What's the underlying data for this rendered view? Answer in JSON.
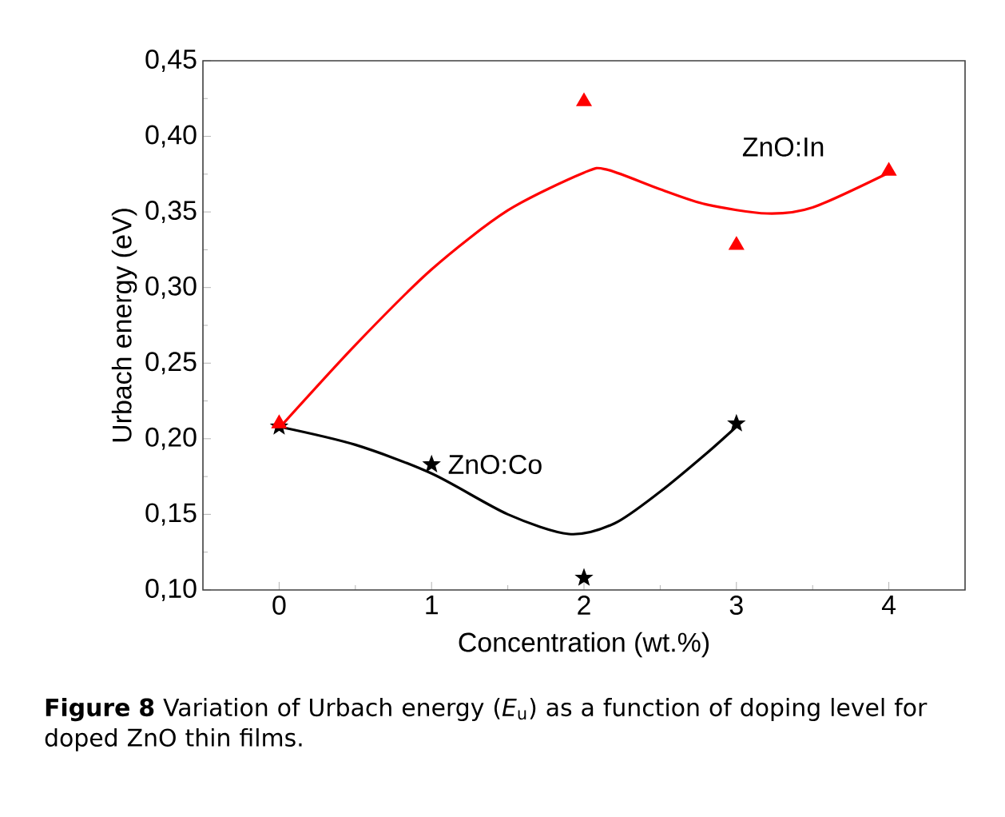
{
  "chart_data": {
    "type": "scatter",
    "xlabel": "Concentration (wt.%)",
    "ylabel": "Urbach energy (eV)",
    "xlim": [
      -0.5,
      4.5
    ],
    "xticks": [
      0,
      1,
      2,
      3,
      4
    ],
    "ylim": [
      0.1,
      0.45
    ],
    "yticks": [
      {
        "value": 0.1,
        "label": "0,10"
      },
      {
        "value": 0.15,
        "label": "0,15"
      },
      {
        "value": 0.2,
        "label": "0,20"
      },
      {
        "value": 0.25,
        "label": "0,25"
      },
      {
        "value": 0.3,
        "label": "0,30"
      },
      {
        "value": 0.35,
        "label": "0,35"
      },
      {
        "value": 0.4,
        "label": "0,40"
      },
      {
        "value": 0.45,
        "label": "0,45"
      }
    ],
    "series": [
      {
        "type": "line",
        "color": "#ff0000",
        "marker": "none",
        "x": [
          0,
          0.5,
          1,
          1.5,
          2,
          2.15,
          2.5,
          2.8,
          3.2,
          3.5,
          4
        ],
        "values": [
          0.207,
          0.262,
          0.312,
          0.351,
          0.376,
          0.378,
          0.365,
          0.355,
          0.349,
          0.353,
          0.376
        ]
      },
      {
        "type": "line",
        "color": "#000000",
        "marker": "none",
        "x": [
          0,
          0.5,
          1,
          1.5,
          1.9,
          2.2,
          2.5,
          2.8,
          3
        ],
        "values": [
          0.208,
          0.196,
          0.177,
          0.15,
          0.137,
          0.144,
          0.165,
          0.19,
          0.208
        ]
      },
      {
        "name": "ZnO:Co",
        "color": "#000000",
        "marker": "star",
        "x": [
          0,
          1,
          2,
          3
        ],
        "values": [
          0.208,
          0.183,
          0.108,
          0.21
        ]
      },
      {
        "name": "ZnO:In",
        "color": "#ff0000",
        "marker": "triangle",
        "x": [
          0,
          2,
          3,
          4
        ],
        "values": [
          0.21,
          0.423,
          0.328,
          0.377
        ]
      }
    ],
    "annotations": [
      "**Figure 8** Variation of Urbach energy (*E*$_{u}$) as a function of doping level for doped ZnO thin films."
    ]
  }
}
